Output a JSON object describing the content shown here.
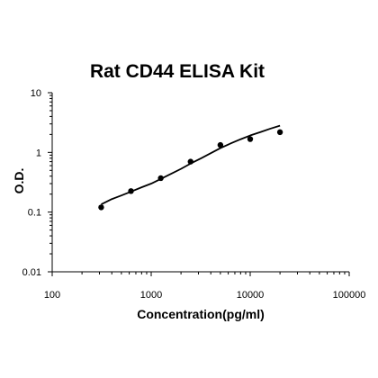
{
  "chart_data": {
    "type": "scatter",
    "title": "Rat CD44 ELISA Kit",
    "xlabel": "Concentration(pg/ml)",
    "ylabel": "O.D.",
    "x_scale": "log",
    "y_scale": "log",
    "xlim": [
      100,
      100000
    ],
    "ylim": [
      0.01,
      10
    ],
    "x_ticks": [
      "100",
      "1000",
      "10000",
      "100000"
    ],
    "y_ticks": [
      "0.01",
      "0.1",
      "1",
      "10"
    ],
    "grid": false,
    "legend": "none",
    "series": [
      {
        "points": [
          {
            "x": 312.5,
            "y": 0.12
          },
          {
            "x": 625,
            "y": 0.225
          },
          {
            "x": 1250,
            "y": 0.37
          },
          {
            "x": 2500,
            "y": 0.7
          },
          {
            "x": 5000,
            "y": 1.33
          },
          {
            "x": 10000,
            "y": 1.67
          },
          {
            "x": 20000,
            "y": 2.18
          }
        ]
      }
    ],
    "fit_curve": {
      "x": [
        312.5,
        400,
        500,
        625,
        800,
        1000,
        1250,
        1600,
        2000,
        2500,
        3200,
        4000,
        5000,
        6400,
        8000,
        10000,
        12800,
        16000,
        20000
      ],
      "y": [
        0.135,
        0.165,
        0.19,
        0.22,
        0.26,
        0.3,
        0.36,
        0.44,
        0.53,
        0.65,
        0.8,
        0.97,
        1.18,
        1.42,
        1.66,
        1.92,
        2.2,
        2.5,
        2.8
      ]
    },
    "colors": {
      "points": "#000000",
      "line": "#000000",
      "axis": "#000000"
    }
  }
}
